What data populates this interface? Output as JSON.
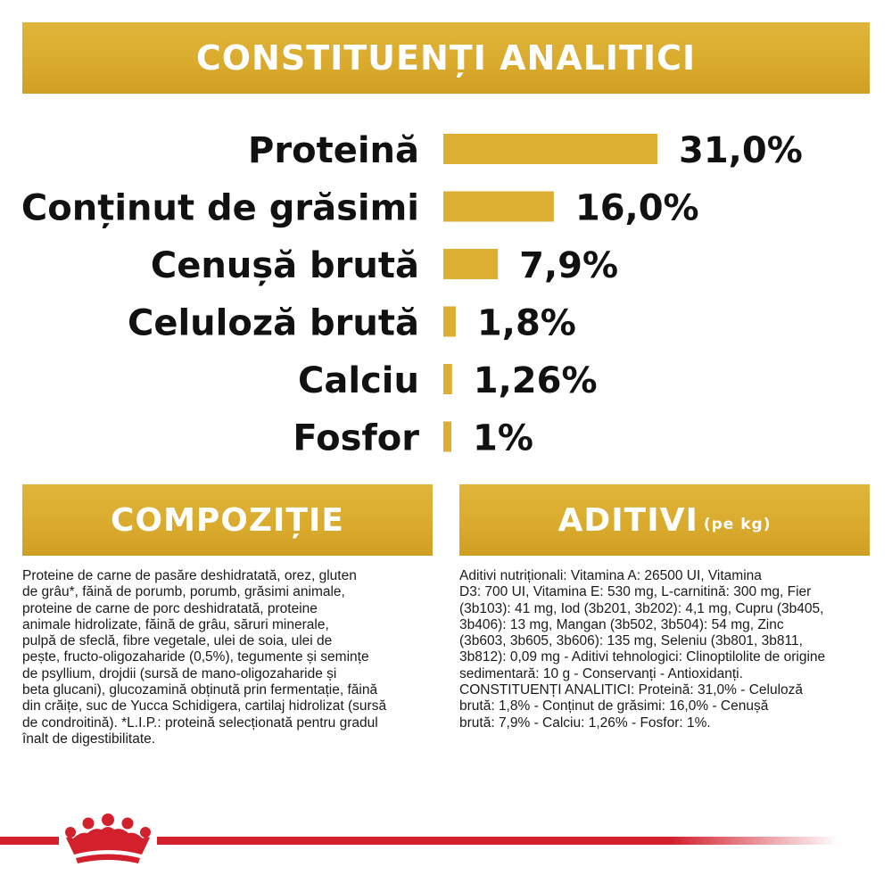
{
  "header": {
    "title": "CONSTITUENȚI ANALITICI"
  },
  "chart_data": {
    "type": "bar",
    "orientation": "horizontal",
    "categories": [
      "Proteină",
      "Conținut de grăsimi",
      "Cenușă brută",
      "Celuloză brută",
      "Calciu",
      "Fosfor"
    ],
    "values": [
      31.0,
      16.0,
      7.9,
      1.8,
      1.26,
      1
    ],
    "value_labels": [
      "31,0%",
      "16,0%",
      "7,9%",
      "1,8%",
      "1,26%",
      "1%"
    ],
    "unit": "%",
    "bar_color": "#dcae32",
    "grid": false,
    "legend": "none"
  },
  "composition": {
    "title": "COMPOZIȚIE",
    "lines": [
      "Proteine de carne de pasăre deshidratată, orez, gluten",
      "de grâu*, făină de porumb, porumb, grăsimi animale,",
      "proteine de carne de porc deshidratată, proteine",
      "animale hidrolizate, făină de grâu, săruri minerale,",
      "pulpă de sfeclă, fibre vegetale, ulei de soia, ulei de",
      "pește, fructo-oligozaharide (0,5%), tegumente și semințe",
      "de psyllium, drojdii (sursă de mano-oligozaharide și",
      "beta glucani), glucozamină obținută prin fermentație, făină",
      "din crăițe, suc de Yucca Schidigera, cartilaj hidrolizat (sursă",
      "de condroitină). *L.I.P.: proteină selecționată pentru gradul",
      "înalt de digestibilitate."
    ]
  },
  "additives": {
    "title": "ADITIVI",
    "title_suffix": "(pe kg)",
    "lines": [
      "Aditivi nutriționali: Vitamina A: 26500 UI, Vitamina",
      "D3: 700 UI, Vitamina E: 530 mg, L-carnitină: 300 mg, Fier",
      "(3b103): 41 mg, Iod (3b201, 3b202): 4,1 mg, Cupru (3b405,",
      "3b406): 13 mg, Mangan (3b502, 3b504): 54 mg, Zinc",
      "(3b603, 3b605, 3b606): 135 mg, Seleniu (3b801, 3b811,",
      "3b812): 0,09 mg - Aditivi tehnologici: Clinoptilolite de origine",
      "sedimentară: 10 g - Conservanți - Antioxidanți.",
      "CONSTITUENȚI ANALITICI: Proteină: 31,0% - Celuloză",
      "brută: 1,8% - Conținut de grăsimi: 16,0% - Cenușă",
      "brută: 7,9% - Calciu: 1,26% - Fosfor: 1%."
    ]
  },
  "footer": {
    "logo_icon": "crown-icon",
    "brand_color": "#d3202d"
  }
}
